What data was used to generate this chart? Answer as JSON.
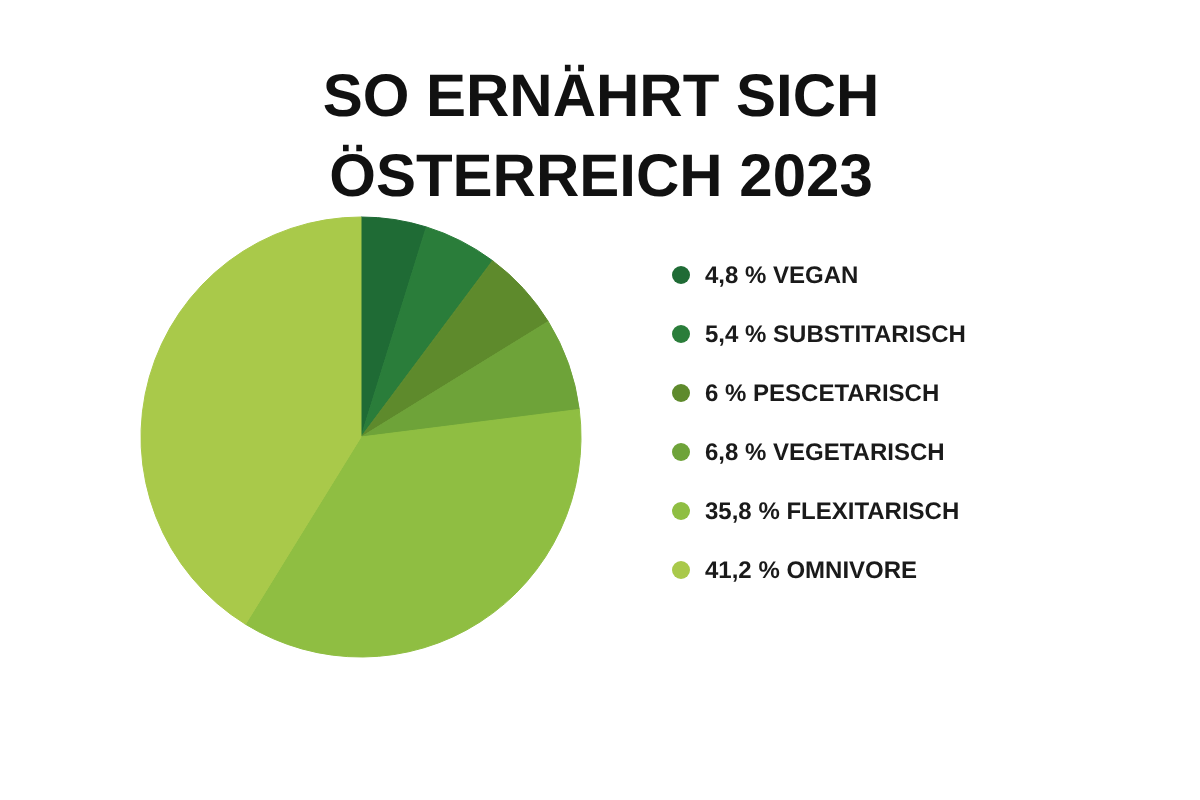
{
  "chart_data": {
    "type": "pie",
    "title": "SO ERNÄHRT SICH ÖSTERREICH 2023",
    "categories": [
      "VEGAN",
      "SUBSTITARISCH",
      "PESCETARISCH",
      "VEGETARISCH",
      "FLEXITARISCH",
      "OMNIVORE"
    ],
    "values": [
      4.8,
      5.4,
      6,
      6.8,
      35.8,
      41.2
    ],
    "value_labels": [
      "4,8 %",
      "5,4 %",
      "6 %",
      "6,8 %",
      "35,8 %",
      "41,2 %"
    ],
    "colors": [
      "#1f6b35",
      "#2a7d3a",
      "#5e8a2c",
      "#6ea339",
      "#8fbe42",
      "#a9c94a"
    ],
    "legend": "right"
  }
}
